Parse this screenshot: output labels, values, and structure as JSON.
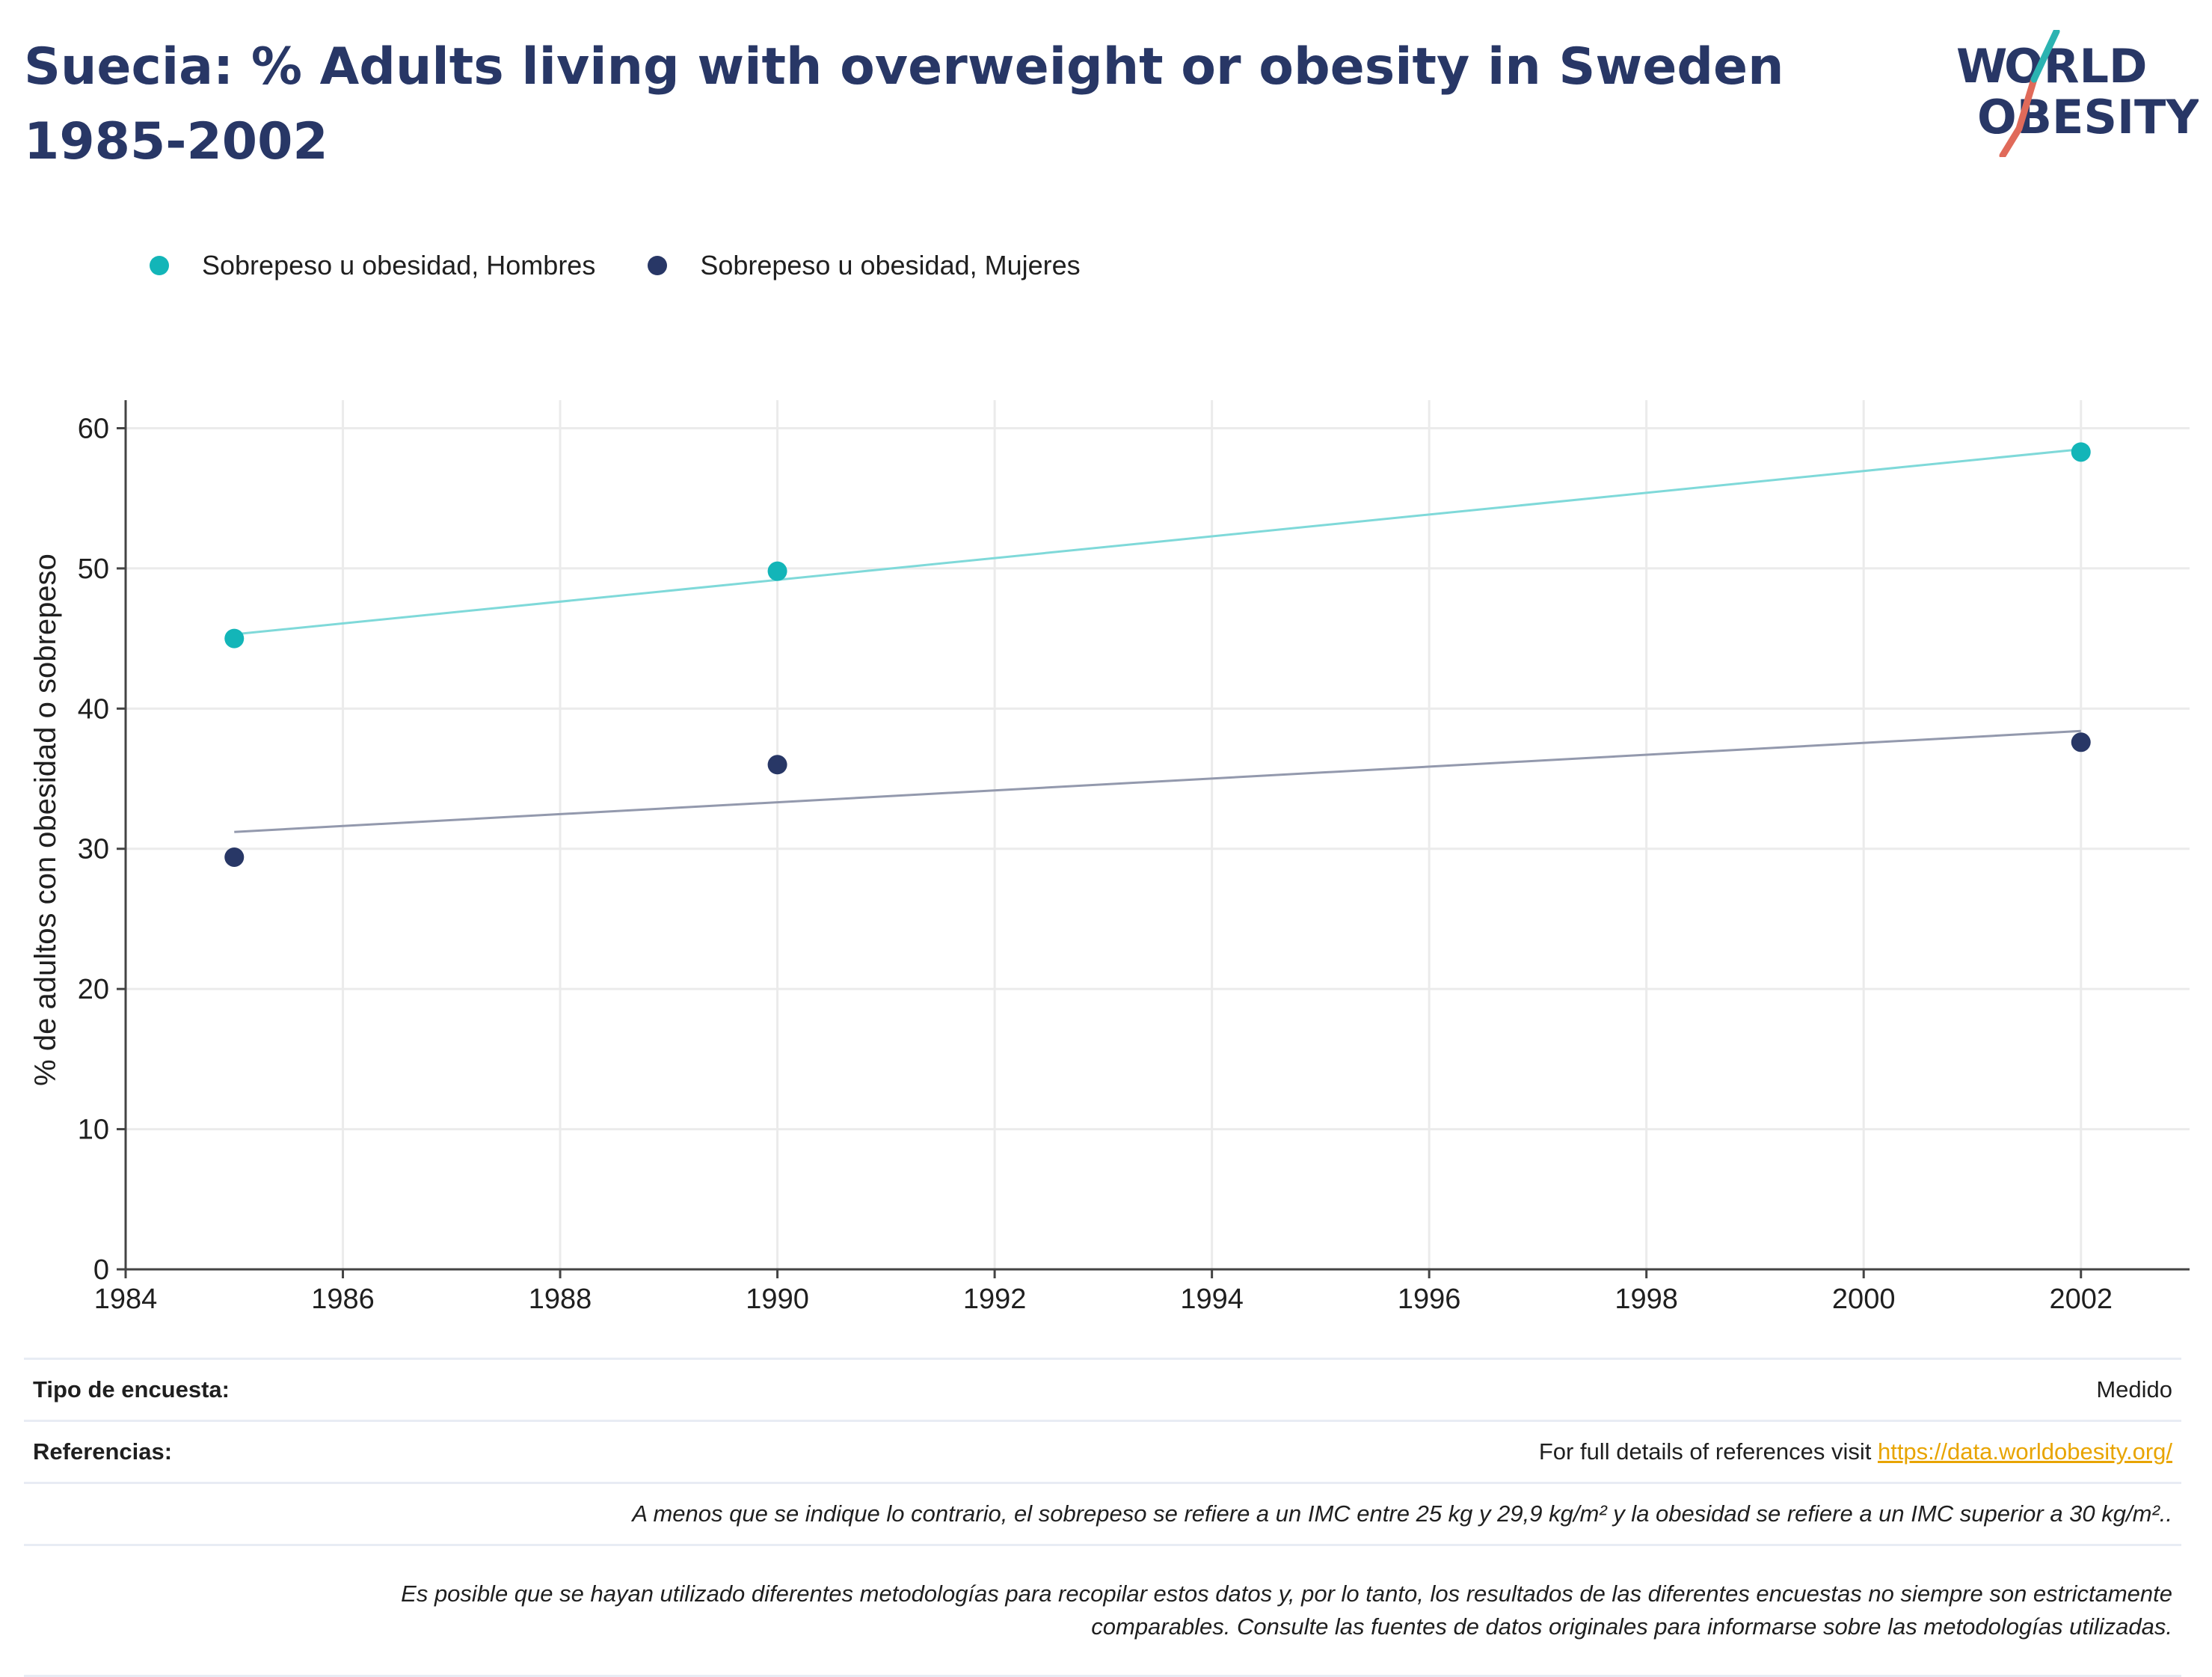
{
  "title": "Suecia: % Adults living with overweight or obesity in Sweden 1985-2002",
  "logo": {
    "line1": "WORLD",
    "line2": "OBESITY",
    "colors": {
      "text": "#283766",
      "slash_top": "#2bb3b1",
      "slash_bottom": "#e06a5a"
    }
  },
  "legend": [
    {
      "label": "Sobrepeso u obesidad, Hombres",
      "color": "#13b5b8"
    },
    {
      "label": "Sobrepeso u obesidad, Mujeres",
      "color": "#283766"
    }
  ],
  "chart_data": {
    "type": "scatter",
    "title": "Suecia: % Adults living with overweight or obesity in Sweden 1985-2002",
    "xlabel": "",
    "ylabel": "% de adultos con obesidad o sobrepeso",
    "xlim": [
      1984,
      2003
    ],
    "ylim": [
      0,
      62
    ],
    "xticks": [
      1984,
      1986,
      1988,
      1990,
      1992,
      1994,
      1996,
      1998,
      2000,
      2002
    ],
    "yticks": [
      0,
      10,
      20,
      30,
      40,
      50,
      60
    ],
    "grid": true,
    "legend_position": "top-left",
    "series": [
      {
        "name": "Sobrepeso u obesidad, Hombres",
        "color": "#13b5b8",
        "trend_color": "#7fd9d9",
        "x": [
          1985,
          1990,
          2002
        ],
        "y": [
          45,
          49.8,
          58.3
        ],
        "trend": {
          "x": [
            1985,
            2002
          ],
          "y": [
            45.3,
            58.5
          ]
        }
      },
      {
        "name": "Sobrepeso u obesidad, Mujeres",
        "color": "#283766",
        "trend_color": "#9399ad",
        "x": [
          1985,
          1990,
          2002
        ],
        "y": [
          29.4,
          36,
          37.6
        ],
        "trend": {
          "x": [
            1985,
            2002
          ],
          "y": [
            31.2,
            38.4
          ]
        }
      }
    ]
  },
  "footer": {
    "survey_label": "Tipo de encuesta:",
    "survey_value": "Medido",
    "references_label": "Referencias:",
    "references_text": "For full details of references visit ",
    "references_link": "https://data.worldobesity.org/",
    "note1": "A menos que se indique lo contrario, el sobrepeso se refiere a un IMC entre 25 kg y 29,9 kg/m² y la obesidad se refiere a un IMC superior a 30 kg/m²..",
    "note2_line1": "Es posible que se hayan utilizado diferentes metodologías para recopilar estos datos y, por lo tanto, los resultados de las diferentes encuestas no siempre son estrictamente",
    "note2_line2": "comparables. Consulte las fuentes de datos originales para informarse sobre las metodologías utilizadas."
  }
}
